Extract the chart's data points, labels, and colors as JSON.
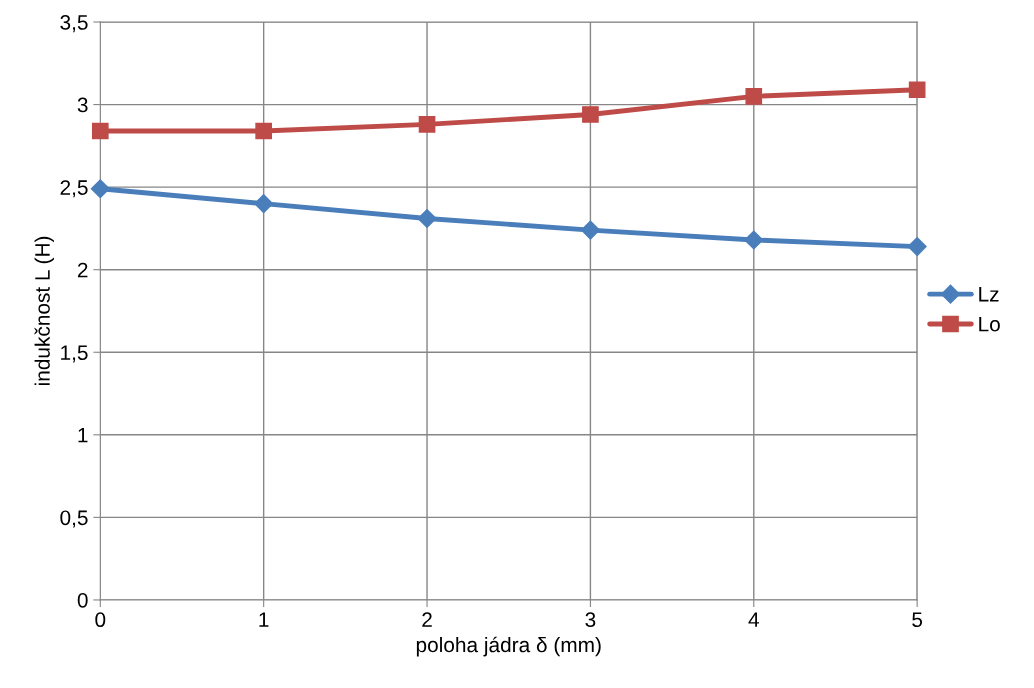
{
  "chart_data": {
    "type": "line",
    "xlabel": "poloha jádra δ (mm)",
    "ylabel": "indukčnost L (H)",
    "x": [
      0,
      1,
      2,
      3,
      4,
      5
    ],
    "series": [
      {
        "name": "Lz",
        "color": "#4a7ebb",
        "marker": "diamond",
        "values": [
          2.49,
          2.4,
          2.31,
          2.24,
          2.18,
          2.14
        ]
      },
      {
        "name": "Lo",
        "color": "#be4b48",
        "marker": "square",
        "values": [
          2.84,
          2.84,
          2.88,
          2.94,
          3.05,
          3.09
        ]
      }
    ],
    "xlim": [
      0,
      5
    ],
    "xticks": [
      0,
      1,
      2,
      3,
      4,
      5
    ],
    "ylim": [
      0,
      3.5
    ],
    "yticks": [
      0,
      {
        "value": 0.5,
        "label": "0,5"
      },
      1,
      {
        "value": 1.5,
        "label": "1,5"
      },
      2,
      {
        "value": 2.5,
        "label": "2,5"
      },
      3,
      {
        "value": 3.5,
        "label": "3,5"
      }
    ],
    "grid": true,
    "legend": "right",
    "line_style": "solid"
  }
}
